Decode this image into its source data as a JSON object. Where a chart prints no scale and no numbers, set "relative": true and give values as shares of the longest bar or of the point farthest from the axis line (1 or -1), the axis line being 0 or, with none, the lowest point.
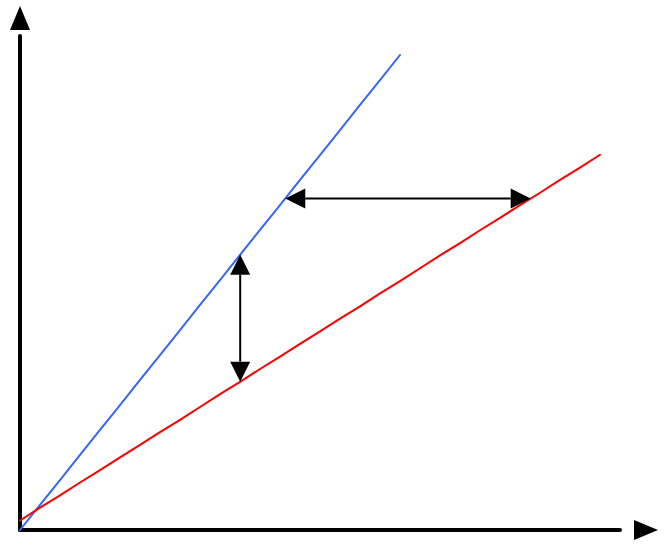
{
  "chart_data": {
    "type": "line",
    "relative": true,
    "categories": [
      null,
      null,
      null,
      null,
      null,
      null,
      null,
      null,
      null,
      null,
      null,
      null,
      null,
      null,
      null,
      null,
      null,
      null,
      null,
      null,
      null,
      null,
      null,
      null,
      null,
      null,
      null,
      null,
      null,
      null,
      null
    ],
    "series": [
      {
        "color": "#3366ff",
        "values": [
          0,
          0.053,
          0.105,
          0.158,
          0.211,
          0.263,
          0.316,
          0.368,
          0.421,
          0.474,
          0.526,
          0.579,
          0.632,
          0.684,
          0.737,
          0.789,
          0.842,
          0.895,
          0.947,
          1,
          null,
          null,
          null,
          null,
          null,
          null,
          null,
          null,
          null,
          null,
          null
        ]
      },
      {
        "color": "#ff0000",
        "values": [
          0.02,
          0.047,
          0.073,
          0.1,
          0.126,
          0.153,
          0.179,
          0.206,
          0.232,
          0.259,
          0.286,
          0.312,
          0.339,
          0.365,
          0.392,
          0.418,
          0.445,
          0.471,
          0.498,
          0.524,
          0.551,
          0.578,
          0.604,
          0.631,
          0.657,
          0.684,
          0.71,
          0.737,
          0.763,
          0.79,
          null
        ]
      }
    ],
    "grid": false,
    "marker": "none",
    "line_style": "solid"
  }
}
